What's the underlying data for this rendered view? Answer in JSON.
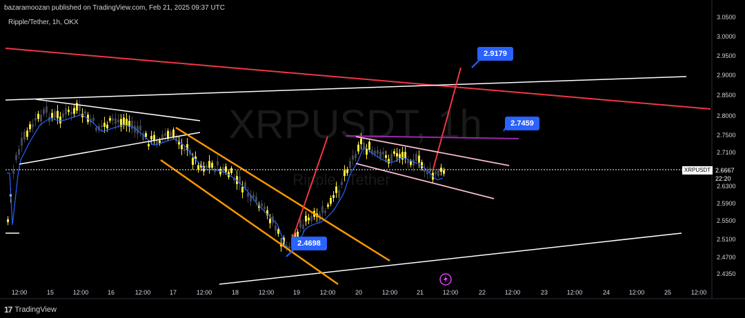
{
  "header": {
    "published": "bazaramoozan published on TradingView.com, Feb 21, 2025 09:37 UTC"
  },
  "symbol": {
    "title": "Ripple/Tether, 1h, OKX",
    "watermark_main": "XRPUSDT, 1h",
    "watermark_sub": "Ripple / Tether"
  },
  "price_axis": {
    "labels": [
      "3.0500",
      "3.0000",
      "2.9500",
      "2.9000",
      "2.8500",
      "2.8000",
      "2.7500",
      "2.7100",
      "2.6300",
      "2.5900",
      "2.5500",
      "2.5100",
      "2.4700",
      "2.4350"
    ]
  },
  "current": {
    "symbol": "XRPUSDT",
    "price": "2.6667",
    "countdown": "22:20"
  },
  "time_axis": {
    "labels": [
      "12:00",
      "15",
      "12:00",
      "16",
      "12:00",
      "17",
      "12:00",
      "18",
      "12:00",
      "19",
      "12:00",
      "20",
      "12:00",
      "21",
      "12:00",
      "22",
      "12:00",
      "23",
      "12:00",
      "24",
      "12:00",
      "25",
      "12:00"
    ]
  },
  "callouts": {
    "c1": "2.9179",
    "c2": "2.7459",
    "c3": "2.4698"
  },
  "footer": {
    "brand": "TradingView"
  },
  "colors": {
    "background": "#000000",
    "bull": "#ffeb3b",
    "bear": "#363a45",
    "ma": "#2962ff",
    "channel": "#ff9800",
    "resistance": "#f23645",
    "callout": "#2962ff",
    "pink": "#f8bbd0",
    "purple": "#9c27b0"
  }
}
